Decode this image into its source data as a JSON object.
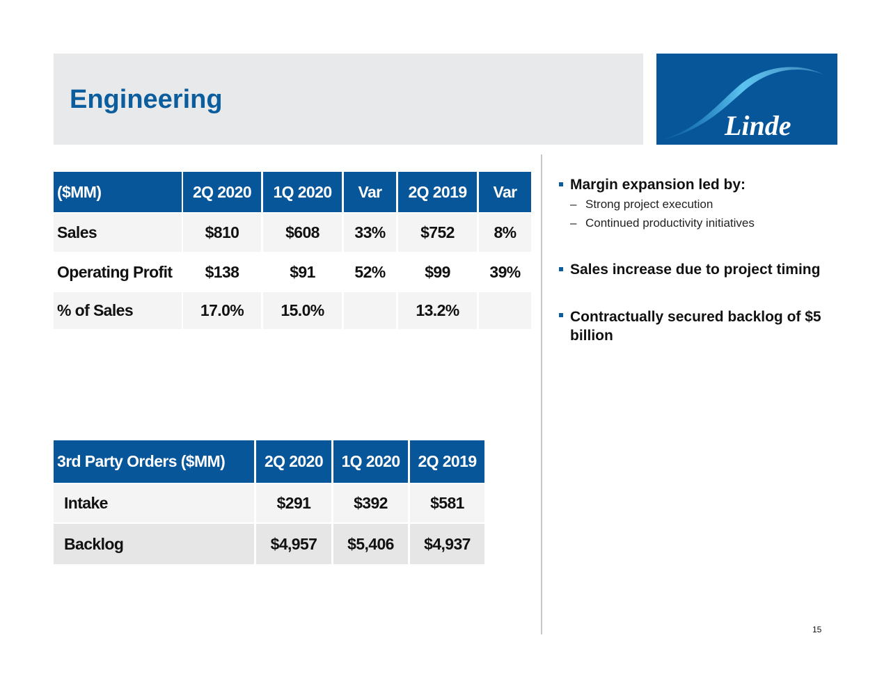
{
  "title": "Engineering",
  "logo": {
    "text": "Linde",
    "brand_color": "#07569a"
  },
  "table1": {
    "headers": [
      "($MM)",
      "2Q 2020",
      "1Q 2020",
      "Var",
      "2Q 2019",
      "Var"
    ],
    "rows": [
      [
        "Sales",
        "$810",
        "$608",
        "33%",
        "$752",
        "8%"
      ],
      [
        "Operating Profit",
        "$138",
        "$91",
        "52%",
        "$99",
        "39%"
      ],
      [
        " % of Sales",
        "17.0%",
        "15.0%",
        "",
        "13.2%",
        ""
      ]
    ]
  },
  "table2": {
    "headers": [
      "3rd Party Orders ($MM)",
      "2Q 2020",
      "1Q 2020",
      "2Q 2019"
    ],
    "rows": [
      [
        "Intake",
        "$291",
        "$392",
        "$581"
      ],
      [
        "Backlog",
        "$4,957",
        "$5,406",
        "$4,937"
      ]
    ]
  },
  "bullets": [
    {
      "text": "Margin expansion led by:",
      "subs": [
        "Strong project execution",
        "Continued productivity initiatives"
      ]
    },
    {
      "text": "Sales increase due to project timing",
      "subs": []
    },
    {
      "text": "Contractually secured backlog of $5 billion",
      "subs": []
    }
  ],
  "page_number": "15"
}
